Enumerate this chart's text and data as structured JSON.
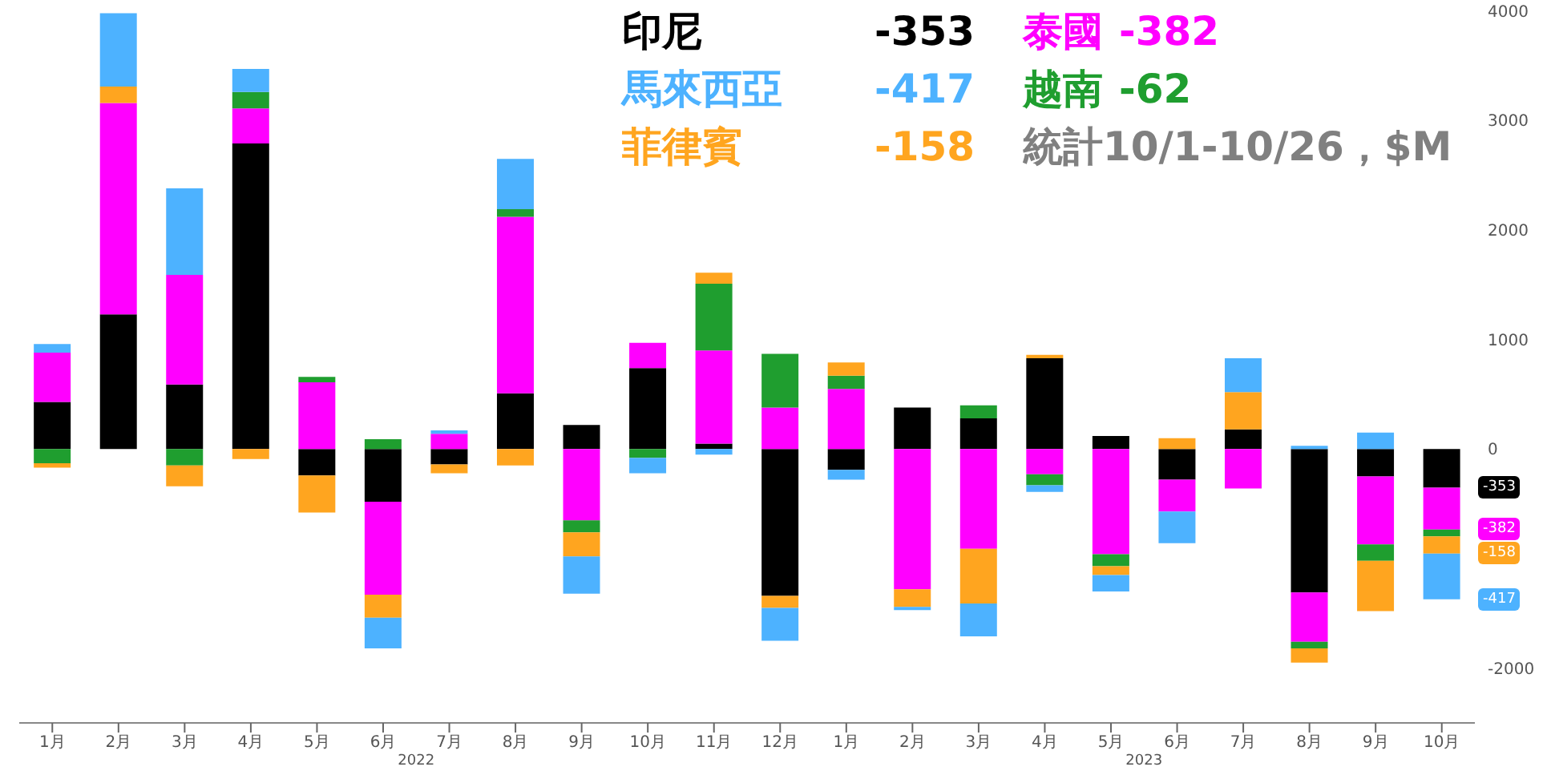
{
  "chart_data": {
    "type": "bar",
    "stacked": true,
    "subtitle": "統計10/1-10/26，$M",
    "categories": [
      "1月",
      "2月",
      "3月",
      "4月",
      "5月",
      "6月",
      "7月",
      "8月",
      "9月",
      "10月",
      "11月",
      "12月",
      "1月",
      "2月",
      "3月",
      "4月",
      "5月",
      "6月",
      "7月",
      "8月",
      "9月",
      "10月"
    ],
    "series": [
      {
        "name": "印尼",
        "color": "#000000",
        "values": [
          430,
          1230,
          590,
          2790,
          -240,
          -480,
          -140,
          510,
          220,
          740,
          50,
          -1340,
          -190,
          380,
          280,
          830,
          120,
          -280,
          180,
          -1310,
          -250,
          -353
        ]
      },
      {
        "name": "泰國",
        "color": "#ff00ff",
        "values": [
          450,
          1930,
          1000,
          320,
          610,
          -850,
          140,
          1610,
          -650,
          230,
          850,
          380,
          550,
          -1280,
          -910,
          -230,
          -960,
          -290,
          -360,
          -450,
          -620,
          -382
        ]
      },
      {
        "name": "越南",
        "color": "#1f9e2f",
        "values": [
          -130,
          0,
          -150,
          150,
          50,
          90,
          0,
          70,
          -110,
          -80,
          610,
          490,
          120,
          0,
          120,
          -100,
          -110,
          0,
          0,
          -60,
          -150,
          -62
        ]
      },
      {
        "name": "菲律賓",
        "color": "#ffa51f",
        "values": [
          -40,
          150,
          -190,
          -90,
          -340,
          -210,
          -80,
          -150,
          -220,
          0,
          100,
          -110,
          120,
          -160,
          -500,
          30,
          -80,
          100,
          340,
          -130,
          -460,
          -158
        ]
      },
      {
        "name": "馬來西亞",
        "color": "#4db2ff",
        "values": [
          80,
          670,
          790,
          210,
          0,
          -280,
          30,
          460,
          -340,
          -140,
          -50,
          -300,
          -90,
          -30,
          -300,
          -60,
          -150,
          -290,
          310,
          30,
          150,
          -417
        ]
      }
    ],
    "ylim": [
      -2500,
      4100
    ],
    "yticks": [
      -2000,
      0,
      1000,
      2000,
      3000,
      4000
    ],
    "grid": false,
    "legend": "top",
    "annotations": [
      "2022",
      "2023",
      "-353",
      "-382",
      "-417",
      "-62",
      "-158",
      "-353",
      "-382",
      "-158",
      "-417"
    ]
  }
}
